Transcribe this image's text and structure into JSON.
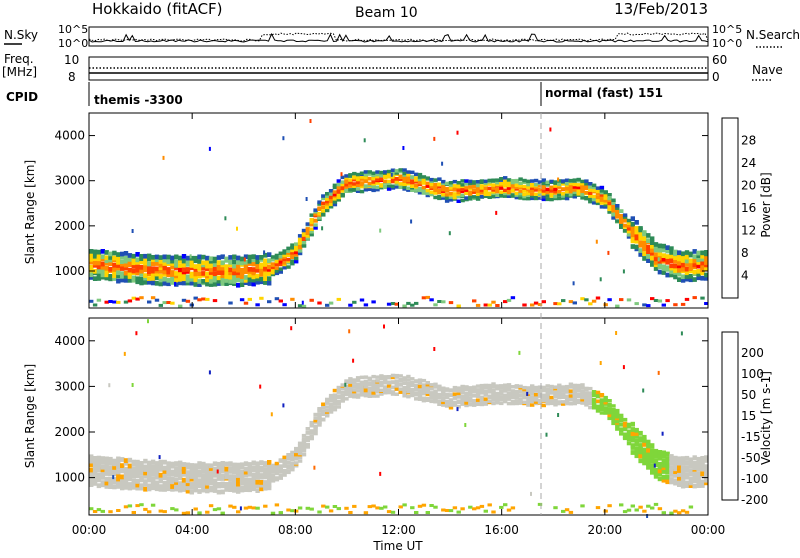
{
  "header": {
    "title": "Hokkaido (fitACF)",
    "beam": "Beam 10",
    "date": "13/Feb/2013"
  },
  "noise_panel": {
    "label_left": "N.Sky",
    "label_right": "N.Search",
    "tick_top": "10^5",
    "tick_bottom": "10^0"
  },
  "freq_panel": {
    "label_left_1": "Freq.",
    "label_left_2": "[MHz]",
    "ticks_left": [
      "10",
      "8"
    ],
    "label_right": "Nave",
    "ticks_right": [
      "60",
      "0"
    ]
  },
  "cpid_panel": {
    "label": "CPID",
    "segments": [
      "themis -3300",
      "normal (fast) 151"
    ]
  },
  "colors": {
    "power_scale": [
      "#0000ff",
      "#1f4fb4",
      "#2e8b57",
      "#7fc97f",
      "#ffd400",
      "#ff8c00",
      "#ff4000",
      "#ff0000"
    ],
    "velocity_scale": [
      "#ff0000",
      "#ff6a00",
      "#ffa500",
      "#c8c8c0",
      "#7fd63a",
      "#2e8b57",
      "#1f4fb4",
      "#1020c0"
    ],
    "ground_scatter": "#c8c8c0"
  },
  "chart_data": [
    {
      "type": "heatmap",
      "name": "power",
      "ylabel": "Slant Range [km]",
      "yticks": [
        "4000",
        "3000",
        "2000",
        "1000"
      ],
      "ylim": [
        180,
        4500
      ],
      "colorbar_label": "Power [dB]",
      "colorbar_ticks": [
        "28",
        "24",
        "20",
        "16",
        "12",
        "8",
        "4"
      ],
      "colorbar_range": [
        0,
        32
      ],
      "bands_hours": [
        0,
        2,
        4,
        6,
        7,
        8,
        9,
        10,
        11,
        12,
        13,
        14,
        15,
        16,
        17,
        18,
        19,
        20,
        21,
        22,
        23,
        24
      ],
      "main_echo_center_km": [
        1150,
        1050,
        1000,
        1000,
        1050,
        1400,
        2400,
        2950,
        3000,
        3050,
        2900,
        2750,
        2800,
        2850,
        2800,
        2800,
        2850,
        2600,
        1900,
        1300,
        1100,
        1150
      ]
    },
    {
      "type": "heatmap",
      "name": "velocity",
      "ylabel": "Slant Range [km]",
      "yticks": [
        "4000",
        "3000",
        "2000",
        "1000"
      ],
      "ylim": [
        180,
        4500
      ],
      "colorbar_label": "Velocity [m s-1]",
      "colorbar_ticks": [
        "200",
        "100",
        "50",
        "15",
        "-15",
        "-50",
        "-100",
        "-200"
      ],
      "colorbar_range": [
        -250,
        250
      ]
    }
  ],
  "x_axis": {
    "label": "Time UT",
    "ticks": [
      "00:00",
      "04:00",
      "08:00",
      "12:00",
      "16:00",
      "20:00",
      "00:00"
    ],
    "range_hours": [
      0,
      24
    ]
  }
}
